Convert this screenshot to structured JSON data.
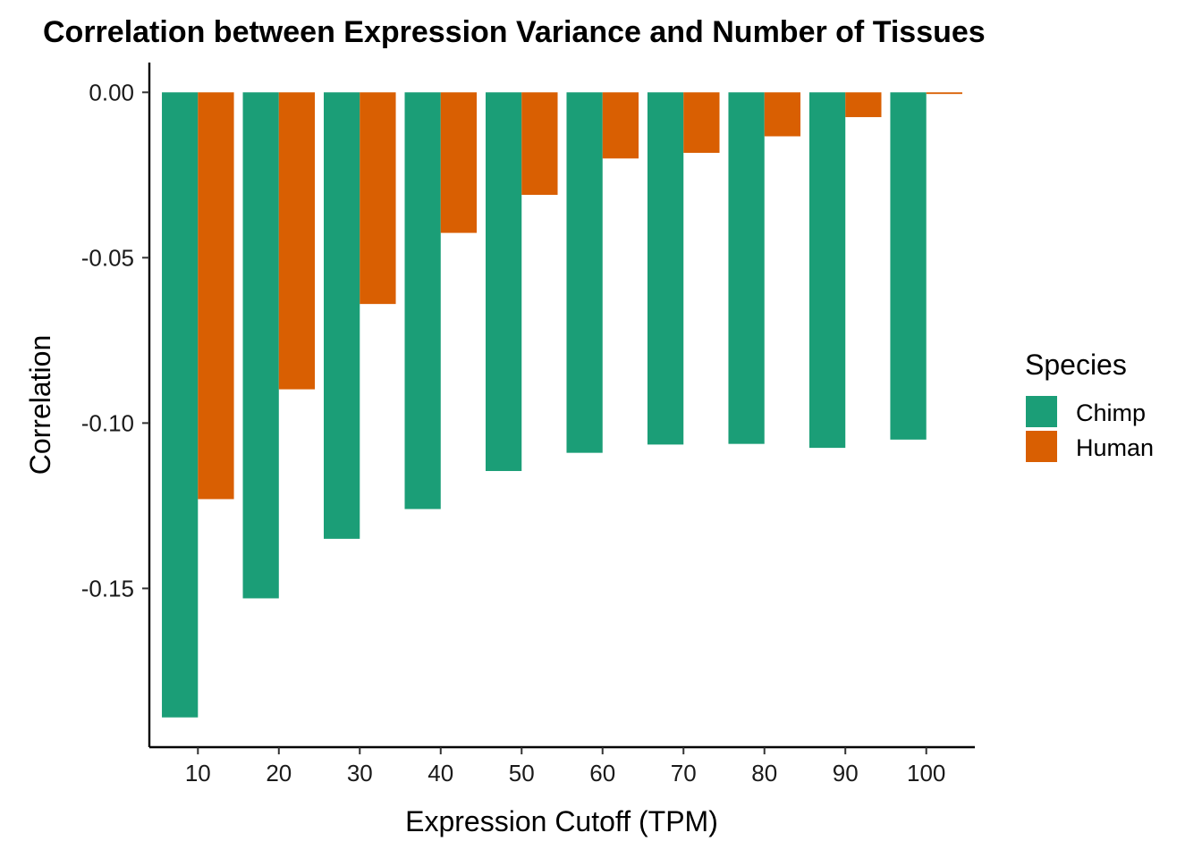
{
  "chart_data": {
    "type": "bar",
    "title": "Correlation between Expression Variance and Number of Tissues",
    "xlabel": "Expression Cutoff (TPM)",
    "ylabel": "Correlation",
    "categories": [
      "10",
      "20",
      "30",
      "40",
      "50",
      "60",
      "70",
      "80",
      "90",
      "100"
    ],
    "series": [
      {
        "name": "Chimp",
        "color": "#1B9E77",
        "values": [
          -0.189,
          -0.153,
          -0.135,
          -0.126,
          -0.1145,
          -0.109,
          -0.1065,
          -0.1063,
          -0.1075,
          -0.105
        ]
      },
      {
        "name": "Human",
        "color": "#D95F02",
        "values": [
          -0.123,
          -0.0898,
          -0.064,
          -0.0425,
          -0.031,
          -0.02,
          -0.0183,
          -0.0133,
          -0.0075,
          -0.0005
        ]
      }
    ],
    "y_ticks": [
      "0.00",
      "-0.05",
      "-0.10",
      "-0.15"
    ],
    "y_tick_values": [
      0.0,
      -0.05,
      -0.1,
      -0.15
    ],
    "ylim": [
      -0.198,
      0.009
    ],
    "grid": false,
    "legend": {
      "title": "Species",
      "position": "right",
      "items": [
        "Chimp",
        "Human"
      ]
    }
  }
}
